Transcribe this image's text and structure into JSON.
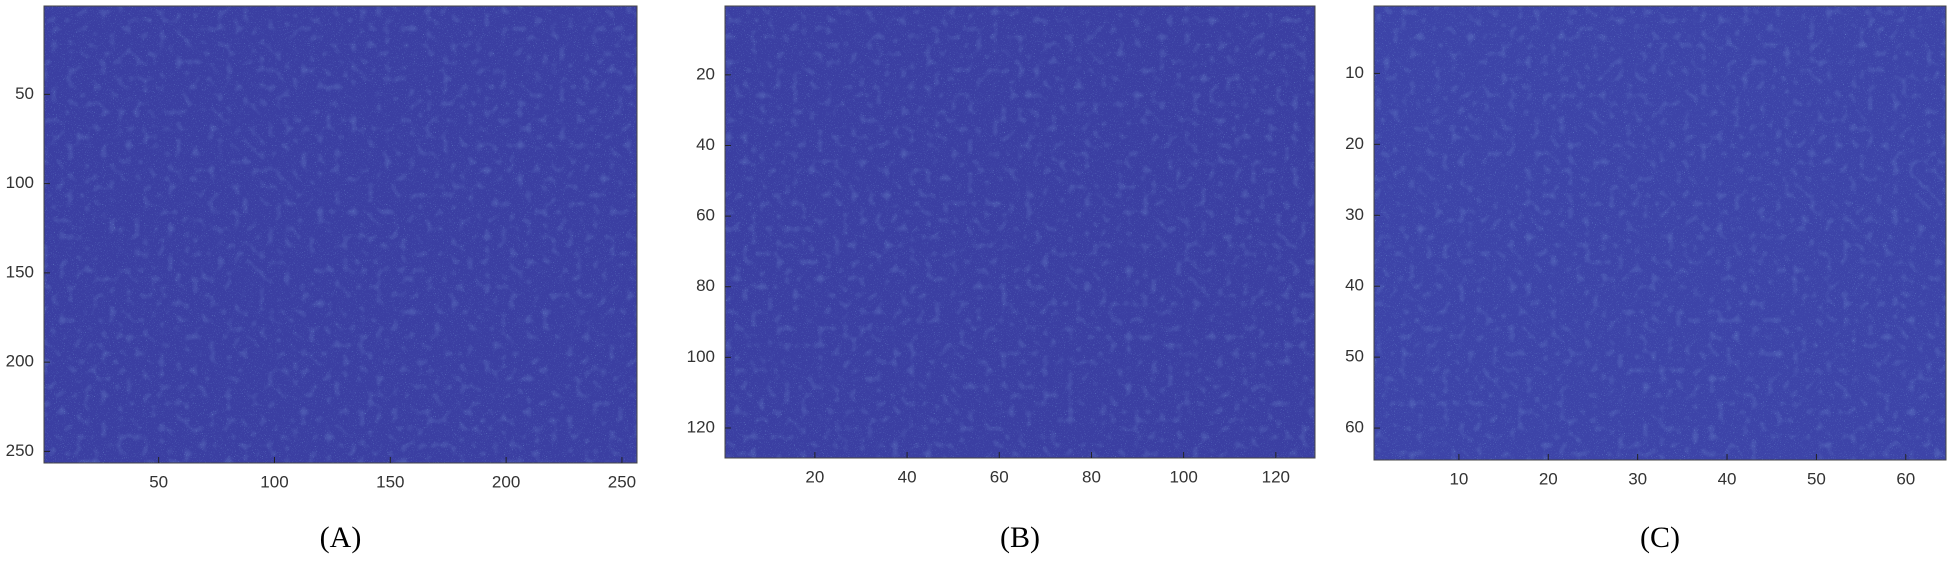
{
  "chart_data": [
    {
      "type": "heatmap",
      "caption": "(A)",
      "color": "#3b3fa2",
      "xlim": [
        0.5,
        256.5
      ],
      "ylim": [
        0.5,
        256.5
      ],
      "y_reversed": true,
      "xticks": [
        50,
        100,
        150,
        200,
        250
      ],
      "yticks": [
        50,
        100,
        150,
        200,
        250
      ]
    },
    {
      "type": "heatmap",
      "caption": "(B)",
      "color": "#3b3fa2",
      "xlim": [
        0.5,
        128.5
      ],
      "ylim": [
        0.5,
        128.5
      ],
      "y_reversed": true,
      "xticks": [
        20,
        40,
        60,
        80,
        100,
        120
      ],
      "yticks": [
        20,
        40,
        60,
        80,
        100,
        120
      ]
    },
    {
      "type": "heatmap",
      "caption": "(C)",
      "color": "#3d44a8",
      "xlim": [
        0.5,
        64.5
      ],
      "ylim": [
        0.5,
        64.5
      ],
      "y_reversed": true,
      "xticks": [
        10,
        20,
        30,
        40,
        50,
        60
      ],
      "yticks": [
        10,
        20,
        30,
        40,
        50,
        60
      ]
    }
  ]
}
